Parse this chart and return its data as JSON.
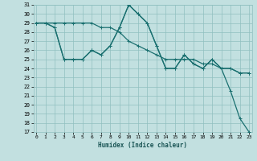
{
  "xlabel": "Humidex (Indice chaleur)",
  "bg_color": "#c2e0e0",
  "grid_color": "#90c0c0",
  "line_color": "#1a7070",
  "xmin": 0,
  "xmax": 23,
  "ymin": 17,
  "ymax": 31,
  "yticks": [
    17,
    18,
    19,
    20,
    21,
    22,
    23,
    24,
    25,
    26,
    27,
    28,
    29,
    30,
    31
  ],
  "xticks": [
    0,
    1,
    2,
    3,
    4,
    5,
    6,
    7,
    8,
    9,
    10,
    11,
    12,
    13,
    14,
    15,
    16,
    17,
    18,
    19,
    20,
    21,
    22,
    23
  ],
  "line1_x": [
    0,
    1,
    2,
    3,
    4,
    5,
    6,
    7,
    8,
    9,
    10,
    11,
    12,
    13,
    14,
    15,
    16,
    17,
    18,
    19,
    20,
    21,
    22,
    23
  ],
  "line1_y": [
    29,
    29,
    29,
    29,
    29,
    29,
    29,
    28.5,
    28.5,
    28,
    27,
    26.5,
    26,
    25.5,
    25,
    25,
    25,
    25,
    24.5,
    24.5,
    24,
    24,
    23.5,
    23.5
  ],
  "line2_x": [
    0,
    1,
    2,
    3,
    4,
    5,
    6,
    7,
    8,
    9,
    10,
    11,
    12,
    13,
    14,
    15,
    16,
    17,
    18,
    19,
    20,
    21,
    22,
    23
  ],
  "line2_y": [
    29,
    29,
    28.5,
    25,
    25,
    25,
    26,
    25.5,
    26.5,
    28.5,
    31,
    30,
    29,
    26.5,
    24,
    24,
    25.5,
    24.5,
    24,
    25,
    24,
    24,
    23.5,
    23.5
  ],
  "line3_x": [
    0,
    1,
    2,
    3,
    4,
    5,
    6,
    7,
    8,
    9,
    10,
    11,
    12,
    13,
    14,
    15,
    16,
    17,
    18,
    19,
    20,
    21,
    22,
    23
  ],
  "line3_y": [
    29,
    29,
    28.5,
    25,
    25,
    25,
    26,
    25.5,
    26.5,
    28.5,
    31,
    30,
    29,
    26.5,
    24,
    24,
    25.5,
    24.5,
    24,
    25,
    24,
    21.5,
    18.5,
    17
  ]
}
